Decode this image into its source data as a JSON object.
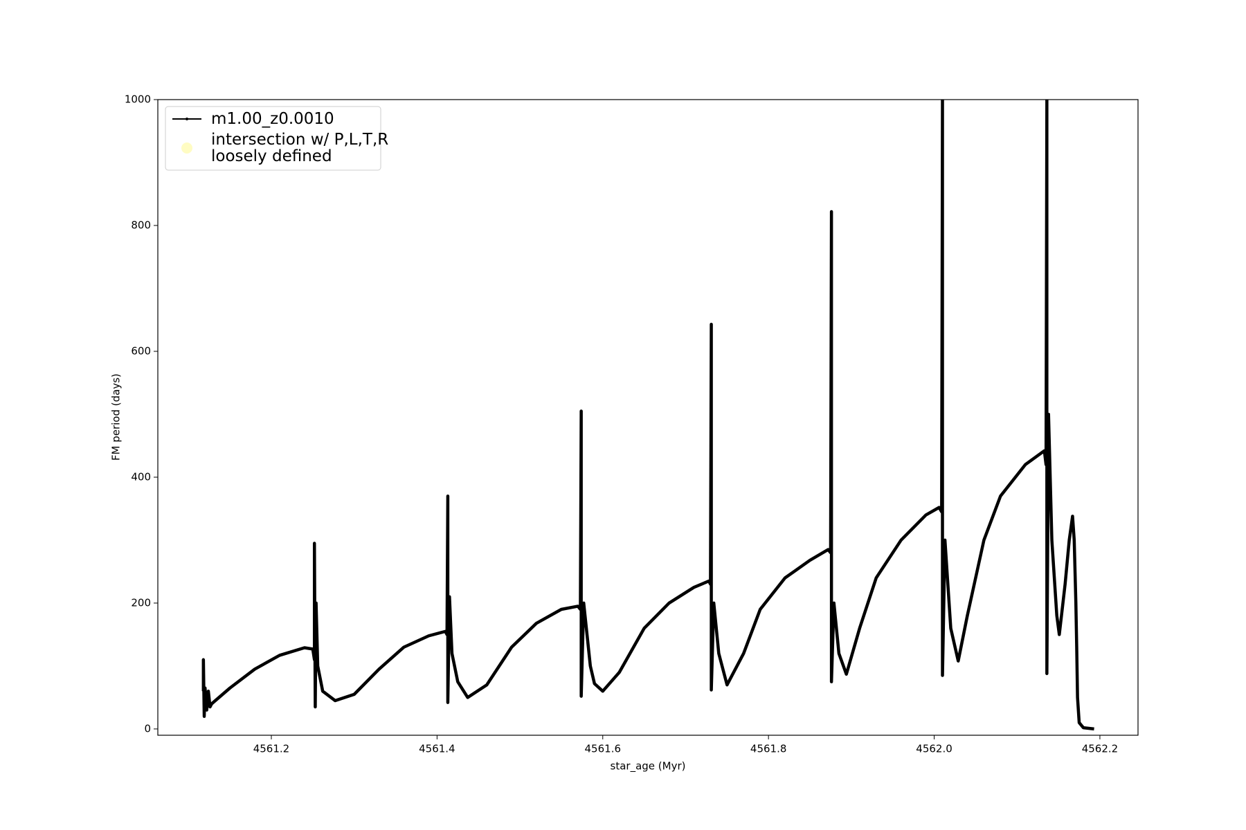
{
  "chart_data": {
    "type": "line",
    "x_label": "star_age (Myr)",
    "y_label": "FM period (days)",
    "xlim": [
      4561.063,
      4562.246
    ],
    "ylim": [
      -10,
      1000
    ],
    "xticks": [
      4561.2,
      4561.4,
      4561.6,
      4561.8,
      {
        "value": 4562,
        "label": "4562.0"
      },
      4562.2
    ],
    "yticks": [
      0,
      200,
      400,
      600,
      800,
      1000
    ],
    "legend": "upper left",
    "grid": false,
    "series": [
      {
        "name": "m1.00_z0.0010",
        "color": "#000000",
        "x": [
          4561.118,
          4561.118,
          4561.119,
          4561.12,
          4561.122,
          4561.124,
          4561.126,
          4561.128,
          4561.15,
          4561.18,
          4561.21,
          4561.24,
          4561.25,
          4561.252,
          4561.252,
          4561.253,
          4561.254,
          4561.256,
          4561.262,
          4561.277,
          4561.3,
          4561.33,
          4561.36,
          4561.39,
          4561.41,
          4561.412,
          4561.413,
          4561.413,
          4561.415,
          4561.418,
          4561.425,
          4561.437,
          4561.46,
          4561.49,
          4561.52,
          4561.55,
          4561.57,
          4561.573,
          4561.574,
          4561.574,
          4561.577,
          4561.585,
          4561.59,
          4561.6,
          4561.62,
          4561.65,
          4561.68,
          4561.71,
          4561.728,
          4561.73,
          4561.731,
          4561.731,
          4561.734,
          4561.74,
          4561.75,
          4561.77,
          4561.79,
          4561.82,
          4561.85,
          4561.872,
          4561.875,
          4561.876,
          4561.876,
          4561.879,
          4561.885,
          4561.894,
          4561.91,
          4561.93,
          4561.96,
          4561.99,
          4562.006,
          4562.009,
          4562.01,
          4562.01,
          4562.013,
          4562.02,
          4562.029,
          4562.04,
          4562.06,
          4562.08,
          4562.11,
          4562.133,
          4562.135,
          4562.136,
          4562.136,
          4562.138,
          4562.142,
          4562.148,
          4562.151,
          4562.158,
          4562.163,
          4562.167,
          4562.169,
          4562.171,
          4562.172,
          4562.173,
          4562.175,
          4562.18,
          4562.193
        ],
        "values": [
          60,
          110,
          20,
          65,
          30,
          60,
          35,
          40,
          65,
          95,
          117,
          129,
          127,
          110,
          295,
          35,
          200,
          100,
          60,
          45,
          55,
          95,
          130,
          148,
          155,
          150,
          370,
          42,
          210,
          120,
          75,
          50,
          70,
          130,
          168,
          190,
          195,
          190,
          505,
          52,
          200,
          100,
          72,
          60,
          90,
          160,
          200,
          225,
          235,
          230,
          643,
          62,
          200,
          120,
          70,
          120,
          190,
          240,
          268,
          285,
          280,
          822,
          75,
          200,
          120,
          87,
          160,
          240,
          300,
          340,
          352,
          345,
          1000,
          85,
          300,
          160,
          108,
          180,
          300,
          370,
          420,
          442,
          420,
          1000,
          88,
          500,
          300,
          180,
          150,
          230,
          300,
          338,
          300,
          200,
          130,
          50,
          10,
          2,
          0
        ]
      },
      {
        "name": "intersection w/ P,L,T,R\nloosely defined",
        "color": "#fffbb8",
        "x": [],
        "values": []
      }
    ]
  }
}
